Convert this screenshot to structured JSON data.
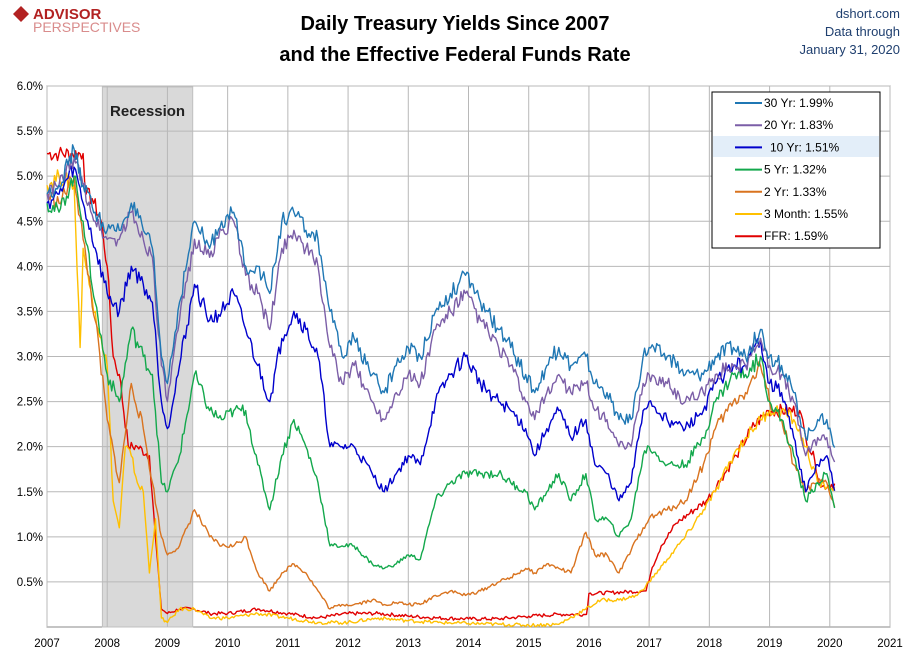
{
  "header": {
    "logo_main": "ADVISOR",
    "logo_sub": "PERSPECTIVES",
    "title_line1": "Daily Treasury Yields Since 2007",
    "title_line2": "and the Effective Federal Funds Rate",
    "source_site": "dshort.com",
    "source_line2": "Data through",
    "source_date": "January 31, 2020"
  },
  "chart_data": {
    "type": "line",
    "title": "Daily Treasury Yields Since 2007 and the Effective Federal Funds Rate",
    "xlabel": "",
    "ylabel": "",
    "xlim": [
      2007,
      2021
    ],
    "ylim": [
      0,
      6
    ],
    "x_ticks": [
      "2007",
      "2008",
      "2009",
      "2010",
      "2011",
      "2012",
      "2013",
      "2014",
      "2015",
      "2016",
      "2017",
      "2018",
      "2019",
      "2020",
      "2021"
    ],
    "y_ticks": [
      "0.5%",
      "1.0%",
      "1.5%",
      "2.0%",
      "2.5%",
      "3.0%",
      "3.5%",
      "4.0%",
      "4.5%",
      "5.0%",
      "5.5%",
      "6.0%"
    ],
    "grid": true,
    "legend_position": "top-right",
    "recession": {
      "label": "Recession",
      "start": 2007.92,
      "end": 2009.42
    },
    "series": [
      {
        "name": "30 Yr: 1.99%",
        "color": "#1f77b4",
        "x": [
          2007,
          2007.2,
          2007.45,
          2007.6,
          2007.8,
          2008,
          2008.2,
          2008.4,
          2008.6,
          2008.75,
          2008.9,
          2009,
          2009.2,
          2009.45,
          2009.7,
          2009.9,
          2010.1,
          2010.3,
          2010.5,
          2010.7,
          2010.9,
          2011.1,
          2011.3,
          2011.5,
          2011.7,
          2011.9,
          2012.1,
          2012.4,
          2012.6,
          2012.8,
          2013,
          2013.2,
          2013.45,
          2013.7,
          2013.95,
          2014.2,
          2014.5,
          2014.7,
          2014.95,
          2015.1,
          2015.3,
          2015.5,
          2015.7,
          2015.95,
          2016.1,
          2016.3,
          2016.5,
          2016.7,
          2016.9,
          2017,
          2017.3,
          2017.6,
          2017.9,
          2018.1,
          2018.4,
          2018.6,
          2018.85,
          2019,
          2019.2,
          2019.4,
          2019.6,
          2019.8,
          2019.95,
          2020.08
        ],
        "y": [
          4.8,
          4.9,
          5.3,
          4.9,
          4.6,
          4.4,
          4.4,
          4.7,
          4.4,
          4.2,
          3.0,
          2.7,
          3.6,
          4.5,
          4.2,
          4.5,
          4.6,
          4.0,
          4.0,
          3.7,
          4.5,
          4.6,
          4.4,
          4.3,
          3.5,
          3.0,
          3.2,
          2.8,
          2.6,
          2.9,
          3.1,
          3.0,
          3.5,
          3.7,
          3.9,
          3.6,
          3.3,
          3.1,
          2.8,
          2.6,
          2.9,
          3.1,
          2.9,
          3.0,
          2.7,
          2.6,
          2.3,
          2.3,
          3.0,
          3.1,
          3.0,
          2.8,
          2.8,
          3.0,
          3.1,
          3.0,
          3.3,
          3.0,
          2.9,
          2.6,
          2.1,
          2.3,
          2.3,
          1.99
        ]
      },
      {
        "name": "20 Yr: 1.83%",
        "color": "#7b5ea7",
        "x": [
          2007,
          2007.2,
          2007.45,
          2007.6,
          2007.8,
          2008,
          2008.2,
          2008.4,
          2008.6,
          2008.75,
          2008.9,
          2009,
          2009.2,
          2009.45,
          2009.7,
          2009.9,
          2010.1,
          2010.3,
          2010.5,
          2010.7,
          2010.9,
          2011.1,
          2011.3,
          2011.5,
          2011.7,
          2011.9,
          2012.1,
          2012.4,
          2012.6,
          2012.8,
          2013,
          2013.2,
          2013.45,
          2013.7,
          2013.95,
          2014.2,
          2014.5,
          2014.7,
          2014.95,
          2015.1,
          2015.3,
          2015.5,
          2015.7,
          2015.95,
          2016.1,
          2016.3,
          2016.5,
          2016.7,
          2016.9,
          2017,
          2017.3,
          2017.6,
          2017.9,
          2018.1,
          2018.4,
          2018.6,
          2018.85,
          2019,
          2019.2,
          2019.4,
          2019.6,
          2019.8,
          2019.95,
          2020.08
        ],
        "y": [
          4.8,
          4.9,
          5.2,
          4.9,
          4.5,
          4.3,
          4.3,
          4.6,
          4.3,
          4.1,
          2.9,
          2.5,
          3.4,
          4.3,
          4.1,
          4.4,
          4.5,
          3.9,
          3.7,
          3.3,
          4.2,
          4.4,
          4.2,
          4.0,
          3.1,
          2.7,
          2.9,
          2.5,
          2.3,
          2.6,
          2.8,
          2.7,
          3.3,
          3.5,
          3.7,
          3.4,
          3.1,
          2.9,
          2.5,
          2.3,
          2.6,
          2.8,
          2.6,
          2.7,
          2.4,
          2.3,
          2.0,
          2.0,
          2.7,
          2.8,
          2.7,
          2.5,
          2.6,
          2.8,
          2.9,
          2.9,
          3.2,
          2.9,
          2.8,
          2.5,
          1.9,
          2.1,
          2.1,
          1.83
        ]
      },
      {
        "name": "10 Yr: 1.51%",
        "color": "#0000cc",
        "x": [
          2007,
          2007.2,
          2007.45,
          2007.6,
          2007.8,
          2008,
          2008.2,
          2008.4,
          2008.6,
          2008.75,
          2008.9,
          2009,
          2009.2,
          2009.45,
          2009.7,
          2009.9,
          2010.1,
          2010.3,
          2010.5,
          2010.7,
          2010.9,
          2011.1,
          2011.3,
          2011.5,
          2011.7,
          2011.9,
          2012.1,
          2012.4,
          2012.6,
          2012.8,
          2013,
          2013.2,
          2013.45,
          2013.7,
          2013.95,
          2014.2,
          2014.5,
          2014.7,
          2014.95,
          2015.1,
          2015.3,
          2015.5,
          2015.7,
          2015.95,
          2016.1,
          2016.3,
          2016.5,
          2016.7,
          2016.9,
          2017,
          2017.3,
          2017.6,
          2017.9,
          2018.1,
          2018.4,
          2018.6,
          2018.85,
          2019,
          2019.2,
          2019.4,
          2019.6,
          2019.8,
          2019.95,
          2020.08
        ],
        "y": [
          4.7,
          4.8,
          5.1,
          4.7,
          4.2,
          3.7,
          3.5,
          4.0,
          3.8,
          3.6,
          2.5,
          2.2,
          2.9,
          3.8,
          3.4,
          3.5,
          3.7,
          3.3,
          2.9,
          2.5,
          3.2,
          3.5,
          3.3,
          3.0,
          2.0,
          2.0,
          2.0,
          1.7,
          1.5,
          1.7,
          1.9,
          1.8,
          2.5,
          2.8,
          3.0,
          2.7,
          2.5,
          2.4,
          2.2,
          1.9,
          2.2,
          2.4,
          2.1,
          2.3,
          1.8,
          1.7,
          1.4,
          1.6,
          2.4,
          2.5,
          2.3,
          2.2,
          2.4,
          2.7,
          2.9,
          2.9,
          3.2,
          2.7,
          2.6,
          2.1,
          1.5,
          1.8,
          1.9,
          1.51
        ]
      },
      {
        "name": "5 Yr: 1.32%",
        "color": "#13a84c",
        "x": [
          2007,
          2007.2,
          2007.45,
          2007.6,
          2007.8,
          2008,
          2008.2,
          2008.4,
          2008.6,
          2008.75,
          2008.9,
          2009,
          2009.2,
          2009.45,
          2009.7,
          2009.9,
          2010.1,
          2010.3,
          2010.5,
          2010.7,
          2010.9,
          2011.1,
          2011.3,
          2011.5,
          2011.7,
          2011.9,
          2012.1,
          2012.4,
          2012.6,
          2012.8,
          2013,
          2013.2,
          2013.45,
          2013.7,
          2013.95,
          2014.2,
          2014.5,
          2014.7,
          2014.95,
          2015.1,
          2015.3,
          2015.5,
          2015.7,
          2015.95,
          2016.1,
          2016.3,
          2016.5,
          2016.7,
          2016.9,
          2017,
          2017.3,
          2017.6,
          2017.9,
          2018.1,
          2018.4,
          2018.6,
          2018.85,
          2019,
          2019.2,
          2019.4,
          2019.6,
          2019.8,
          2019.95,
          2020.08
        ],
        "y": [
          4.7,
          4.6,
          5.0,
          4.5,
          3.6,
          2.8,
          2.5,
          3.3,
          3.0,
          2.8,
          1.6,
          1.5,
          1.9,
          2.8,
          2.4,
          2.3,
          2.4,
          2.4,
          1.8,
          1.3,
          1.9,
          2.3,
          2.0,
          1.6,
          0.9,
          0.9,
          0.9,
          0.7,
          0.65,
          0.7,
          0.8,
          0.75,
          1.4,
          1.6,
          1.7,
          1.7,
          1.7,
          1.6,
          1.5,
          1.3,
          1.5,
          1.7,
          1.4,
          1.7,
          1.2,
          1.2,
          1.0,
          1.2,
          1.9,
          2.0,
          1.8,
          1.8,
          2.1,
          2.5,
          2.8,
          2.8,
          3.0,
          2.5,
          2.3,
          1.9,
          1.4,
          1.6,
          1.7,
          1.32
        ]
      },
      {
        "name": "2 Yr: 1.33%",
        "color": "#d9731f",
        "x": [
          2007,
          2007.2,
          2007.45,
          2007.6,
          2007.8,
          2008,
          2008.2,
          2008.4,
          2008.6,
          2008.75,
          2008.9,
          2009,
          2009.2,
          2009.45,
          2009.7,
          2009.9,
          2010.1,
          2010.3,
          2010.5,
          2010.7,
          2010.9,
          2011.1,
          2011.3,
          2011.5,
          2011.7,
          2011.9,
          2012.1,
          2012.4,
          2012.6,
          2012.8,
          2013,
          2013.2,
          2013.45,
          2013.7,
          2013.95,
          2014.2,
          2014.5,
          2014.7,
          2014.95,
          2015.1,
          2015.3,
          2015.5,
          2015.7,
          2015.95,
          2016.1,
          2016.3,
          2016.5,
          2016.7,
          2016.9,
          2017,
          2017.3,
          2017.6,
          2017.9,
          2018.1,
          2018.4,
          2018.6,
          2018.85,
          2019,
          2019.2,
          2019.4,
          2019.6,
          2019.8,
          2019.95,
          2020.08
        ],
        "y": [
          4.8,
          4.7,
          5.0,
          4.3,
          3.4,
          2.3,
          1.6,
          2.7,
          2.2,
          1.6,
          1.0,
          0.8,
          0.9,
          1.3,
          1.0,
          0.9,
          0.9,
          1.0,
          0.6,
          0.4,
          0.6,
          0.7,
          0.6,
          0.4,
          0.2,
          0.25,
          0.25,
          0.3,
          0.25,
          0.27,
          0.25,
          0.25,
          0.35,
          0.4,
          0.35,
          0.4,
          0.5,
          0.55,
          0.65,
          0.6,
          0.7,
          0.65,
          0.6,
          1.05,
          0.8,
          0.8,
          0.6,
          0.85,
          1.1,
          1.2,
          1.3,
          1.4,
          1.8,
          2.2,
          2.5,
          2.6,
          2.9,
          2.5,
          2.3,
          1.8,
          1.5,
          1.6,
          1.6,
          1.33
        ]
      },
      {
        "name": "3 Month: 1.55%",
        "color": "#ffc000",
        "x": [
          2007,
          2007.2,
          2007.45,
          2007.55,
          2007.6,
          2007.7,
          2007.8,
          2007.9,
          2008,
          2008.1,
          2008.2,
          2008.3,
          2008.4,
          2008.5,
          2008.6,
          2008.7,
          2008.8,
          2008.9,
          2009,
          2009.2,
          2009.45,
          2009.7,
          2010,
          2010.5,
          2011,
          2011.5,
          2012,
          2012.5,
          2013,
          2013.5,
          2014,
          2014.5,
          2015,
          2015.5,
          2015.95,
          2016.2,
          2016.5,
          2016.8,
          2017,
          2017.3,
          2017.6,
          2017.9,
          2018.1,
          2018.4,
          2018.6,
          2018.85,
          2019,
          2019.2,
          2019.4,
          2019.6,
          2019.8,
          2019.95,
          2020.08
        ],
        "y": [
          4.9,
          5.0,
          4.9,
          3.1,
          4.2,
          3.8,
          3.5,
          3.2,
          2.9,
          1.4,
          1.1,
          2.0,
          1.9,
          1.6,
          1.5,
          0.6,
          1.2,
          0.1,
          0.05,
          0.2,
          0.2,
          0.1,
          0.1,
          0.15,
          0.1,
          0.05,
          0.05,
          0.1,
          0.07,
          0.05,
          0.04,
          0.03,
          0.02,
          0.03,
          0.2,
          0.3,
          0.3,
          0.35,
          0.5,
          0.75,
          1.0,
          1.3,
          1.5,
          1.9,
          2.1,
          2.3,
          2.4,
          2.4,
          2.3,
          2.0,
          1.6,
          1.55,
          1.55
        ]
      },
      {
        "name": "FFR: 1.59%",
        "color": "#e00000",
        "x": [
          2007,
          2007.2,
          2007.4,
          2007.6,
          2007.65,
          2007.75,
          2007.9,
          2008,
          2008.1,
          2008.2,
          2008.35,
          2008.5,
          2008.7,
          2008.8,
          2008.9,
          2009,
          2009.2,
          2009.45,
          2009.7,
          2010,
          2010.5,
          2011,
          2011.5,
          2012,
          2012.5,
          2013,
          2013.5,
          2014,
          2014.5,
          2015,
          2015.5,
          2015.96,
          2016,
          2016.95,
          2017.05,
          2017.2,
          2017.45,
          2017.95,
          2018.2,
          2018.45,
          2018.7,
          2018.98,
          2019.5,
          2019.6,
          2019.75,
          2019.85,
          2020.08
        ],
        "y": [
          5.25,
          5.25,
          5.25,
          5.25,
          4.8,
          4.75,
          4.5,
          4.0,
          3.0,
          2.8,
          2.0,
          2.0,
          1.9,
          1.0,
          0.2,
          0.15,
          0.2,
          0.2,
          0.15,
          0.15,
          0.2,
          0.15,
          0.1,
          0.15,
          0.15,
          0.12,
          0.1,
          0.09,
          0.09,
          0.12,
          0.14,
          0.14,
          0.37,
          0.4,
          0.66,
          0.9,
          1.15,
          1.4,
          1.65,
          1.9,
          2.2,
          2.4,
          2.4,
          2.1,
          1.85,
          1.55,
          1.59
        ]
      }
    ]
  }
}
